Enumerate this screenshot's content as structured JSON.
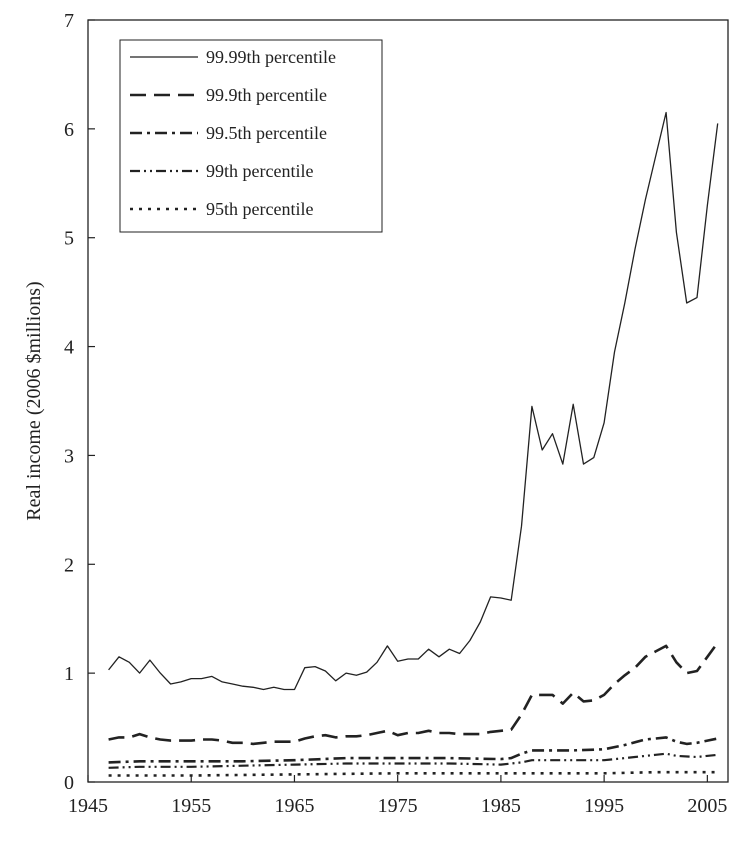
{
  "chart_data": {
    "type": "line",
    "title": "",
    "xlabel": "",
    "ylabel": "Real income (2006 $millions)",
    "xlim": [
      1945,
      2007
    ],
    "ylim": [
      0,
      7
    ],
    "x_ticks": [
      "1945",
      "1955",
      "1965",
      "1975",
      "1985",
      "1995",
      "2005"
    ],
    "y_ticks": [
      "0",
      "1",
      "2",
      "3",
      "4",
      "5",
      "6",
      "7"
    ],
    "grid": false,
    "legend_position": "top-left",
    "line_color": "#222222",
    "series": [
      {
        "name": "99.99th percentile",
        "dash": "solid",
        "x": [
          1947,
          1948,
          1949,
          1950,
          1951,
          1952,
          1953,
          1954,
          1955,
          1956,
          1957,
          1958,
          1959,
          1960,
          1961,
          1962,
          1963,
          1964,
          1965,
          1966,
          1967,
          1968,
          1969,
          1970,
          1971,
          1972,
          1973,
          1974,
          1975,
          1976,
          1977,
          1978,
          1979,
          1980,
          1981,
          1982,
          1983,
          1984,
          1985,
          1986,
          1987,
          1988,
          1989,
          1990,
          1991,
          1992,
          1993,
          1994,
          1995,
          1996,
          1997,
          1998,
          1999,
          2000,
          2001,
          2002,
          2003,
          2004,
          2005,
          2006
        ],
        "y": [
          1.03,
          1.15,
          1.1,
          1.0,
          1.12,
          1.0,
          0.9,
          0.92,
          0.95,
          0.95,
          0.97,
          0.92,
          0.9,
          0.88,
          0.87,
          0.85,
          0.87,
          0.85,
          0.85,
          1.05,
          1.06,
          1.02,
          0.93,
          1.0,
          0.98,
          1.01,
          1.1,
          1.25,
          1.11,
          1.13,
          1.13,
          1.22,
          1.15,
          1.22,
          1.18,
          1.3,
          1.47,
          1.7,
          1.69,
          1.67,
          2.35,
          3.45,
          3.05,
          3.2,
          2.92,
          3.47,
          2.92,
          2.98,
          3.3,
          3.95,
          4.4,
          4.9,
          5.35,
          5.75,
          6.15,
          5.05,
          4.4,
          4.45,
          5.3,
          6.05
        ]
      },
      {
        "name": "99.9th percentile",
        "dash": "long-dash",
        "x": [
          1947,
          1948,
          1949,
          1950,
          1951,
          1952,
          1953,
          1954,
          1955,
          1956,
          1957,
          1958,
          1959,
          1960,
          1961,
          1962,
          1963,
          1964,
          1965,
          1966,
          1967,
          1968,
          1969,
          1970,
          1971,
          1972,
          1973,
          1974,
          1975,
          1976,
          1977,
          1978,
          1979,
          1980,
          1981,
          1982,
          1983,
          1984,
          1985,
          1986,
          1987,
          1988,
          1989,
          1990,
          1991,
          1992,
          1993,
          1994,
          1995,
          1996,
          1997,
          1998,
          1999,
          2000,
          2001,
          2002,
          2003,
          2004,
          2005,
          2006
        ],
        "y": [
          0.39,
          0.41,
          0.41,
          0.44,
          0.41,
          0.39,
          0.38,
          0.38,
          0.38,
          0.39,
          0.39,
          0.38,
          0.36,
          0.36,
          0.35,
          0.36,
          0.37,
          0.37,
          0.37,
          0.4,
          0.42,
          0.43,
          0.41,
          0.42,
          0.42,
          0.43,
          0.45,
          0.47,
          0.43,
          0.45,
          0.45,
          0.47,
          0.45,
          0.45,
          0.44,
          0.44,
          0.44,
          0.46,
          0.47,
          0.48,
          0.62,
          0.8,
          0.8,
          0.8,
          0.72,
          0.82,
          0.74,
          0.75,
          0.8,
          0.9,
          0.98,
          1.05,
          1.15,
          1.2,
          1.25,
          1.1,
          1.0,
          1.02,
          1.15,
          1.28
        ]
      },
      {
        "name": "99.5th percentile",
        "dash": "dash-dot",
        "x": [
          1947,
          1950,
          1955,
          1960,
          1965,
          1970,
          1975,
          1980,
          1985,
          1986,
          1987,
          1988,
          1990,
          1992,
          1995,
          1997,
          1999,
          2000,
          2001,
          2002,
          2003,
          2004,
          2005,
          2006
        ],
        "y": [
          0.18,
          0.19,
          0.19,
          0.19,
          0.2,
          0.22,
          0.22,
          0.22,
          0.21,
          0.22,
          0.26,
          0.29,
          0.29,
          0.29,
          0.3,
          0.34,
          0.39,
          0.4,
          0.41,
          0.37,
          0.35,
          0.36,
          0.38,
          0.4
        ]
      },
      {
        "name": "99th percentile",
        "dash": "dash-dot-dot",
        "x": [
          1947,
          1950,
          1955,
          1960,
          1965,
          1970,
          1975,
          1980,
          1985,
          1987,
          1988,
          1990,
          1995,
          1997,
          2000,
          2001,
          2002,
          2004,
          2006
        ],
        "y": [
          0.13,
          0.14,
          0.14,
          0.15,
          0.16,
          0.17,
          0.17,
          0.17,
          0.16,
          0.18,
          0.2,
          0.2,
          0.2,
          0.22,
          0.25,
          0.26,
          0.24,
          0.23,
          0.25
        ]
      },
      {
        "name": "95th percentile",
        "dash": "dotted",
        "x": [
          1947,
          1955,
          1965,
          1975,
          1985,
          1995,
          2000,
          2006
        ],
        "y": [
          0.06,
          0.06,
          0.07,
          0.08,
          0.08,
          0.08,
          0.09,
          0.09
        ]
      }
    ]
  }
}
